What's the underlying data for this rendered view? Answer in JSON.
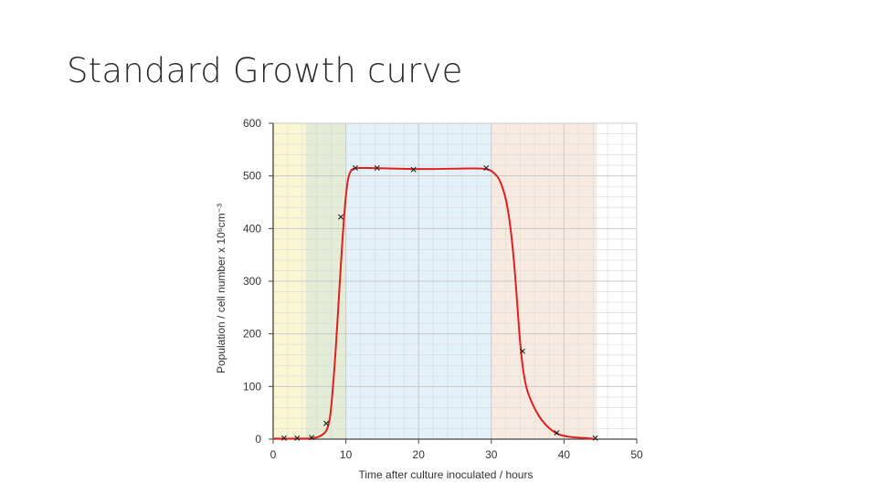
{
  "slide": {
    "title": "Standard Growth curve"
  },
  "chart_data": {
    "type": "line",
    "xlabel": "Time after culture inoculated / hours",
    "ylabel": "Population / cell number x 10⁶cm⁻³",
    "xlim": [
      0,
      50
    ],
    "ylim": [
      0,
      600
    ],
    "x_ticks": [
      0,
      10,
      20,
      30,
      40,
      50
    ],
    "y_ticks": [
      0,
      100,
      200,
      300,
      400,
      500,
      600
    ],
    "grid": true,
    "phases": [
      {
        "x0": 0,
        "x1": 4.5,
        "color": "#fbf6d2"
      },
      {
        "x0": 4.5,
        "x1": 10,
        "color": "#e3ecd4"
      },
      {
        "x0": 10,
        "x1": 30,
        "color": "#e3f1f8"
      },
      {
        "x0": 30,
        "x1": 44.5,
        "color": "#f7ebe1"
      }
    ],
    "points": [
      {
        "x": 1.5,
        "y": 2
      },
      {
        "x": 3.3,
        "y": 2
      },
      {
        "x": 5.3,
        "y": 3
      },
      {
        "x": 7.3,
        "y": 30
      },
      {
        "x": 9.3,
        "y": 422
      },
      {
        "x": 11.3,
        "y": 515
      },
      {
        "x": 14.3,
        "y": 515
      },
      {
        "x": 19.3,
        "y": 512
      },
      {
        "x": 29.3,
        "y": 515
      },
      {
        "x": 34.3,
        "y": 167
      },
      {
        "x": 39.0,
        "y": 12
      },
      {
        "x": 44.3,
        "y": 2
      }
    ],
    "curve": [
      [
        0,
        1
      ],
      [
        4,
        1
      ],
      [
        5.5,
        2
      ],
      [
        6.5,
        6
      ],
      [
        7.3,
        16
      ],
      [
        7.8,
        40
      ],
      [
        8.2,
        95
      ],
      [
        8.6,
        170
      ],
      [
        9.0,
        260
      ],
      [
        9.4,
        350
      ],
      [
        9.8,
        430
      ],
      [
        10.2,
        485
      ],
      [
        10.6,
        507
      ],
      [
        11.2,
        514
      ],
      [
        13,
        515
      ],
      [
        20,
        513
      ],
      [
        26,
        514
      ],
      [
        28.5,
        514
      ],
      [
        29.6,
        512
      ],
      [
        30.4,
        505
      ],
      [
        31.2,
        490
      ],
      [
        32,
        455
      ],
      [
        32.6,
        405
      ],
      [
        33.1,
        340
      ],
      [
        33.5,
        270
      ],
      [
        33.9,
        195
      ],
      [
        34.3,
        140
      ],
      [
        34.8,
        100
      ],
      [
        35.5,
        72
      ],
      [
        36.5,
        45
      ],
      [
        37.5,
        27
      ],
      [
        38.5,
        15
      ],
      [
        39.5,
        8
      ],
      [
        41,
        4
      ],
      [
        44,
        1
      ]
    ],
    "series_color": "#e02020",
    "marker": "x"
  }
}
